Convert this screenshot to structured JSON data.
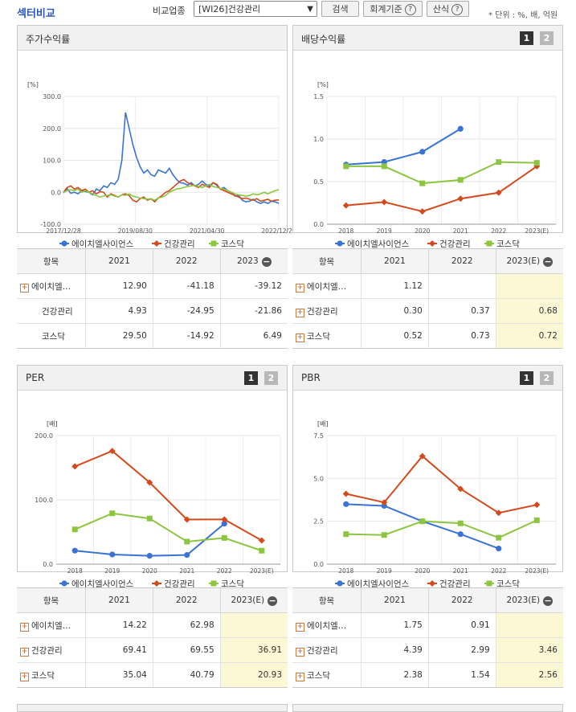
{
  "header": {
    "title": "섹터비교",
    "compare_label": "비교업종",
    "compare_select": "[WI26]건강관리",
    "search_button": "검색",
    "accounting_button": "회계기준",
    "formula_button": "산식",
    "unit_note": "* 단위 : %, 배, 억원"
  },
  "colors": {
    "company": "#3a73d6",
    "sector": "#d44a1c",
    "kosdaq": "#8cc63f",
    "highlight": "#fcf7d4"
  },
  "panels": {
    "stock_return": {
      "title": "주가수익률",
      "chart_data": {
        "type": "line",
        "yunit": "[%]",
        "ylim": [
          -100,
          300
        ],
        "yticks": [
          "300.0",
          "200.0",
          "100.0",
          "0.0",
          "-100.0"
        ],
        "xticks": [
          "2017/12/28",
          "2019/08/30",
          "2021/04/30",
          "2022/12/29"
        ],
        "series": [
          {
            "name": "에이치엘사이언스",
            "values": [
              -2,
              12,
              -3,
              0,
              -5,
              5,
              2,
              0,
              -8,
              10,
              5,
              20,
              15,
              30,
              25,
              40,
              100,
              250,
              200,
              150,
              110,
              80,
              60,
              70,
              55,
              50,
              70,
              65,
              60,
              75,
              55,
              40,
              30,
              28,
              22,
              30,
              20,
              25,
              35,
              25,
              20,
              30,
              22,
              10,
              15,
              5,
              0,
              -12,
              -10,
              -25,
              -30,
              -28,
              -22,
              -30,
              -35,
              -30,
              -35,
              -28,
              -30,
              -35
            ]
          },
          {
            "name": "건강관리",
            "values": [
              0,
              15,
              20,
              10,
              15,
              5,
              10,
              0,
              5,
              -5,
              2,
              0,
              -15,
              -5,
              -10,
              -15,
              -8,
              -5,
              -10,
              -25,
              -30,
              -20,
              -15,
              -25,
              -20,
              -30,
              -18,
              -10,
              0,
              5,
              15,
              25,
              35,
              40,
              30,
              25,
              20,
              15,
              25,
              20,
              15,
              30,
              25,
              10,
              5,
              0,
              -5,
              -10,
              -15,
              -20,
              -18,
              -22,
              -25,
              -20,
              -28,
              -25,
              -22,
              -28,
              -25,
              -24
            ]
          },
          {
            "name": "코스닥",
            "values": [
              0,
              5,
              8,
              5,
              10,
              0,
              5,
              0,
              -5,
              -10,
              -15,
              -12,
              -10,
              -8,
              -12,
              -15,
              -8,
              -10,
              -5,
              -12,
              -15,
              -18,
              -20,
              -22,
              -20,
              -25,
              -18,
              -15,
              -10,
              0,
              5,
              10,
              12,
              15,
              18,
              20,
              22,
              18,
              15,
              20,
              25,
              18,
              15,
              12,
              10,
              5,
              0,
              -5,
              -8,
              -10,
              -12,
              -10,
              -5,
              -8,
              -5,
              0,
              -5,
              0,
              5,
              8
            ]
          }
        ]
      },
      "table": {
        "headers": [
          "항목",
          "2021",
          "2022",
          "2023"
        ],
        "rows": [
          {
            "name": "에이치엘…",
            "expand": true,
            "values": [
              "12.90",
              "-41.18",
              "-39.12"
            ]
          },
          {
            "name": "건강관리",
            "expand": false,
            "values": [
              "4.93",
              "-24.95",
              "-21.86"
            ]
          },
          {
            "name": "코스닥",
            "expand": false,
            "values": [
              "29.50",
              "-14.92",
              "6.49"
            ]
          }
        ]
      }
    },
    "dividend": {
      "title": "배당수익률",
      "pages": [
        "1",
        "2"
      ],
      "chart_data": {
        "type": "line",
        "yunit": "[%]",
        "ylim": [
          0,
          1.5
        ],
        "yticks": [
          "1.5",
          "1.0",
          "0.5",
          "0.0"
        ],
        "categories": [
          "2018",
          "2019",
          "2020",
          "2021",
          "2022",
          "2023(E)"
        ],
        "series": [
          {
            "name": "에이치엘사이언스",
            "values": [
              0.7,
              0.73,
              0.85,
              1.12,
              null,
              null
            ]
          },
          {
            "name": "건강관리",
            "values": [
              0.22,
              0.26,
              0.15,
              0.3,
              0.37,
              0.68
            ]
          },
          {
            "name": "코스닥",
            "values": [
              0.68,
              0.68,
              0.48,
              0.52,
              0.73,
              0.72
            ]
          }
        ]
      },
      "table": {
        "headers": [
          "항목",
          "2021",
          "2022",
          "2023(E)"
        ],
        "rows": [
          {
            "name": "에이치엘…",
            "expand": true,
            "values": [
              "1.12",
              "",
              ""
            ]
          },
          {
            "name": "건강관리",
            "expand": true,
            "values": [
              "0.30",
              "0.37",
              "0.68"
            ]
          },
          {
            "name": "코스닥",
            "expand": true,
            "values": [
              "0.52",
              "0.73",
              "0.72"
            ]
          }
        ]
      }
    },
    "per": {
      "title": "PER",
      "pages": [
        "1",
        "2"
      ],
      "chart_data": {
        "type": "line",
        "yunit": "[배]",
        "ylim": [
          0,
          200
        ],
        "yticks": [
          "200.0",
          "100.0",
          "0.0"
        ],
        "categories": [
          "2018",
          "2019",
          "2020",
          "2021",
          "2022",
          "2023(E)"
        ],
        "series": [
          {
            "name": "에이치엘사이언스",
            "values": [
              21,
              15,
              13,
              14.22,
              62.98,
              null
            ]
          },
          {
            "name": "건강관리",
            "values": [
              152,
              176,
              127,
              69.41,
              69.55,
              36.91
            ]
          },
          {
            "name": "코스닥",
            "values": [
              54,
              79,
              71,
              35.04,
              40.79,
              20.93
            ]
          }
        ]
      },
      "table": {
        "headers": [
          "항목",
          "2021",
          "2022",
          "2023(E)"
        ],
        "rows": [
          {
            "name": "에이치엘…",
            "expand": true,
            "values": [
              "14.22",
              "62.98",
              ""
            ]
          },
          {
            "name": "건강관리",
            "expand": true,
            "values": [
              "69.41",
              "69.55",
              "36.91"
            ]
          },
          {
            "name": "코스닥",
            "expand": true,
            "values": [
              "35.04",
              "40.79",
              "20.93"
            ]
          }
        ]
      }
    },
    "pbr": {
      "title": "PBR",
      "pages": [
        "1",
        "2"
      ],
      "chart_data": {
        "type": "line",
        "yunit": "[배]",
        "ylim": [
          0,
          7.5
        ],
        "yticks": [
          "7.5",
          "5.0",
          "2.5",
          "0.0"
        ],
        "categories": [
          "2018",
          "2019",
          "2020",
          "2021",
          "2022",
          "2023(E)"
        ],
        "series": [
          {
            "name": "에이치엘사이언스",
            "values": [
              3.5,
              3.4,
              2.5,
              1.75,
              0.91,
              null
            ]
          },
          {
            "name": "건강관리",
            "values": [
              4.1,
              3.6,
              6.3,
              4.39,
              2.99,
              3.46
            ]
          },
          {
            "name": "코스닥",
            "values": [
              1.75,
              1.7,
              2.5,
              2.38,
              1.54,
              2.56
            ]
          }
        ]
      },
      "table": {
        "headers": [
          "항목",
          "2021",
          "2022",
          "2023(E)"
        ],
        "rows": [
          {
            "name": "에이치엘…",
            "expand": true,
            "values": [
              "1.75",
              "0.91",
              ""
            ]
          },
          {
            "name": "건강관리",
            "expand": true,
            "values": [
              "4.39",
              "2.99",
              "3.46"
            ]
          },
          {
            "name": "코스닥",
            "expand": true,
            "values": [
              "2.38",
              "1.54",
              "2.56"
            ]
          }
        ]
      }
    }
  }
}
